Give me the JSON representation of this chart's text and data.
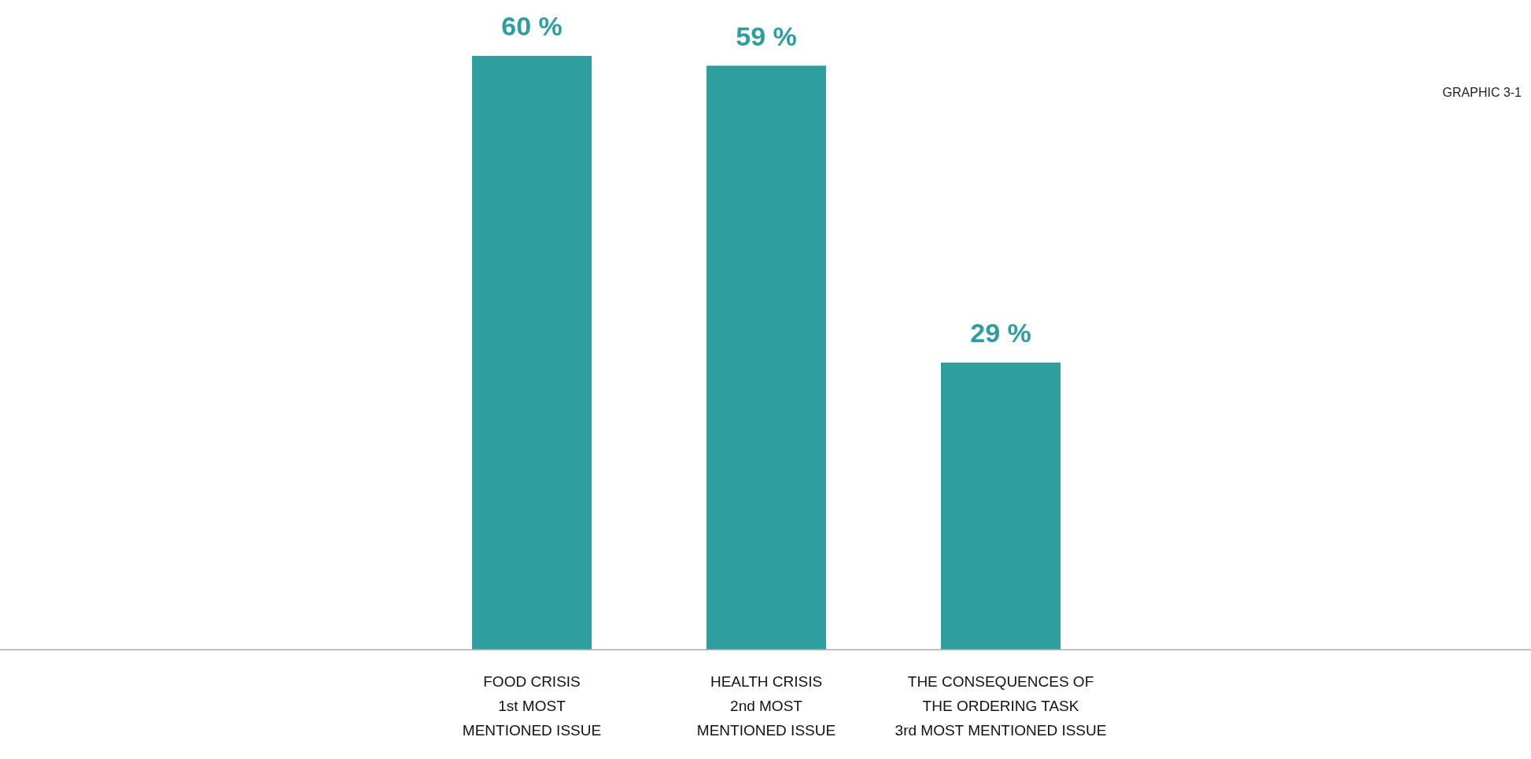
{
  "chart_data": {
    "type": "bar",
    "categories": [
      "FOOD CRISIS\n1st MOST\nMENTIONED ISSUE",
      "HEALTH CRISIS\n2nd MOST\nMENTIONED ISSUE",
      "THE CONSEQUENCES OF\nTHE ORDERING TASK\n3rd MOST MENTIONED ISSUE"
    ],
    "values": [
      60,
      59,
      29
    ],
    "color": "#2e9e9e",
    "value_labels": [
      "60 %",
      "59 %",
      "29 %"
    ],
    "annotations": [
      "GRAPHIC 3-1"
    ]
  }
}
